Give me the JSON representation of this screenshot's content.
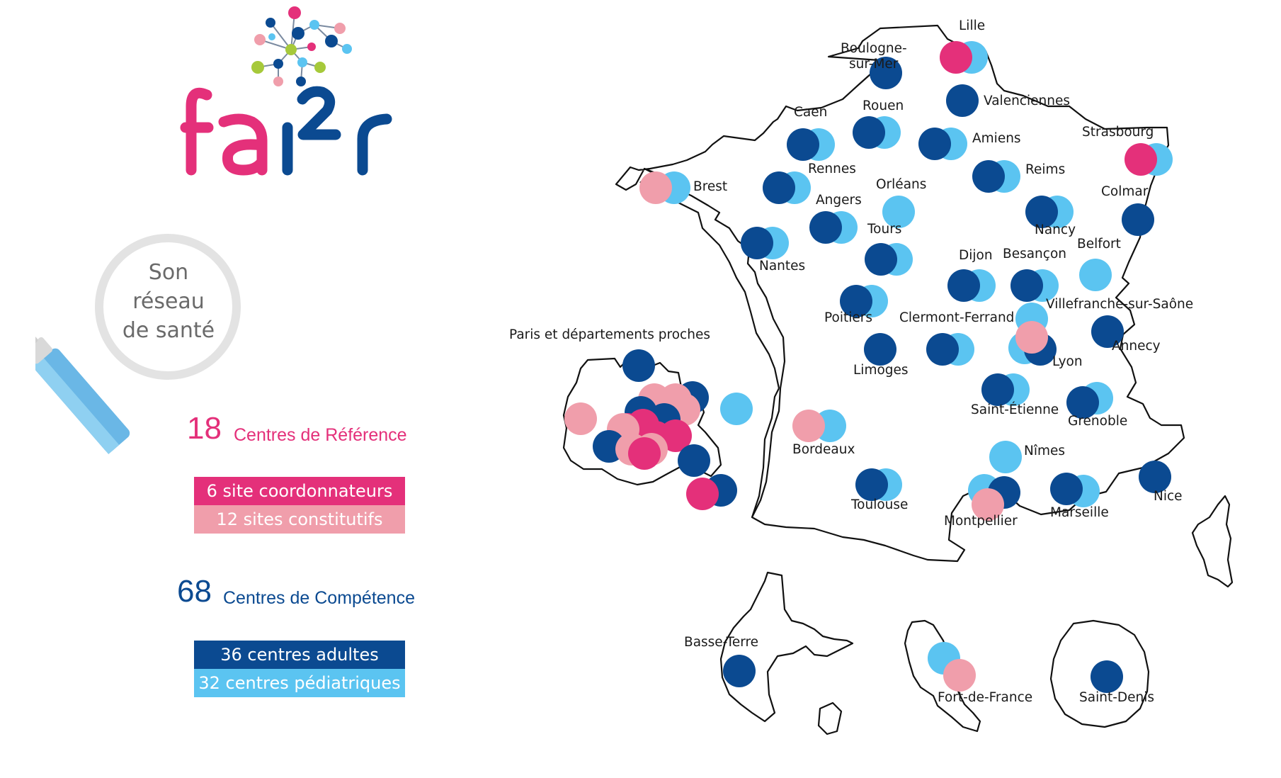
{
  "logo": {
    "text": "fai²r"
  },
  "magnifier": {
    "lines": [
      "Son",
      "réseau",
      "de santé"
    ]
  },
  "reference": {
    "count": "18",
    "label": "Centres de Référence"
  },
  "reference_legend": [
    {
      "label": "6 site coordonnateurs",
      "color": "#e4307a"
    },
    {
      "label": "12 sites constitutifs",
      "color": "#f09eab"
    }
  ],
  "competence": {
    "count": "68",
    "label": "Centres de Compétence"
  },
  "competence_legend": [
    {
      "label": "36 centres adultes",
      "color": "#0b4a91"
    },
    {
      "label": "32 centres pédiatriques",
      "color": "#5bc4f1"
    }
  ],
  "colors": {
    "pink": "#e4307a",
    "lightpink": "#f09eab",
    "navy": "#0b4a91",
    "lightblue": "#5bc4f1",
    "accent_pink": "#e4307a",
    "accent_navy": "#0b4a91"
  },
  "paris_label": "Paris et départements proches",
  "cities": [
    {
      "name": "Lille",
      "markers": [
        "lightblue",
        "pink"
      ]
    },
    {
      "name": "Boulogne-sur-Mer",
      "markers": [
        "navy"
      ]
    },
    {
      "name": "Valenciennes",
      "markers": [
        "navy"
      ]
    },
    {
      "name": "Caen",
      "markers": [
        "lightblue",
        "navy"
      ]
    },
    {
      "name": "Rouen",
      "markers": [
        "lightblue",
        "navy"
      ]
    },
    {
      "name": "Amiens",
      "markers": [
        "lightblue",
        "navy"
      ]
    },
    {
      "name": "Strasbourg",
      "markers": [
        "lightblue",
        "pink"
      ]
    },
    {
      "name": "Reims",
      "markers": [
        "lightblue",
        "navy"
      ]
    },
    {
      "name": "Brest",
      "markers": [
        "lightblue",
        "lightpink"
      ]
    },
    {
      "name": "Rennes",
      "markers": [
        "lightblue",
        "navy"
      ]
    },
    {
      "name": "Orléans",
      "markers": [
        "lightblue"
      ]
    },
    {
      "name": "Angers",
      "markers": [
        "lightblue",
        "navy"
      ]
    },
    {
      "name": "Colmar",
      "markers": [
        "navy"
      ]
    },
    {
      "name": "Nancy",
      "markers": [
        "lightblue",
        "navy"
      ]
    },
    {
      "name": "Tours",
      "markers": [
        "lightblue",
        "navy"
      ]
    },
    {
      "name": "Nantes",
      "markers": [
        "lightblue",
        "navy"
      ]
    },
    {
      "name": "Belfort",
      "markers": [
        "lightblue"
      ]
    },
    {
      "name": "Dijon",
      "markers": [
        "lightblue",
        "navy"
      ]
    },
    {
      "name": "Besançon",
      "markers": [
        "lightblue",
        "navy"
      ]
    },
    {
      "name": "Poitiers",
      "markers": [
        "lightblue",
        "navy"
      ]
    },
    {
      "name": "Clermont-Ferrand",
      "markers": [
        "lightblue",
        "navy"
      ]
    },
    {
      "name": "Villefranche-sur-Saône",
      "markers": [
        "lightblue"
      ]
    },
    {
      "name": "Annecy",
      "markers": [
        "navy"
      ]
    },
    {
      "name": "Lyon",
      "markers": [
        "lightblue",
        "navy",
        "lightpink"
      ]
    },
    {
      "name": "Limoges",
      "markers": [
        "navy"
      ]
    },
    {
      "name": "Saint-Étienne",
      "markers": [
        "lightblue",
        "navy"
      ]
    },
    {
      "name": "Grenoble",
      "markers": [
        "lightblue",
        "navy"
      ]
    },
    {
      "name": "Bordeaux",
      "markers": [
        "lightblue",
        "lightpink"
      ]
    },
    {
      "name": "Nîmes",
      "markers": [
        "lightblue"
      ]
    },
    {
      "name": "Toulouse",
      "markers": [
        "lightblue",
        "navy"
      ]
    },
    {
      "name": "Montpellier",
      "markers": [
        "lightblue",
        "navy",
        "lightpink"
      ]
    },
    {
      "name": "Marseille",
      "markers": [
        "lightblue",
        "navy"
      ]
    },
    {
      "name": "Nice",
      "markers": [
        "navy"
      ]
    },
    {
      "name": "Basse-Terre",
      "markers": [
        "navy"
      ]
    },
    {
      "name": "Fort-de-France",
      "markers": [
        "lightblue",
        "lightpink"
      ]
    },
    {
      "name": "Saint-Denis",
      "markers": [
        "navy"
      ]
    }
  ]
}
